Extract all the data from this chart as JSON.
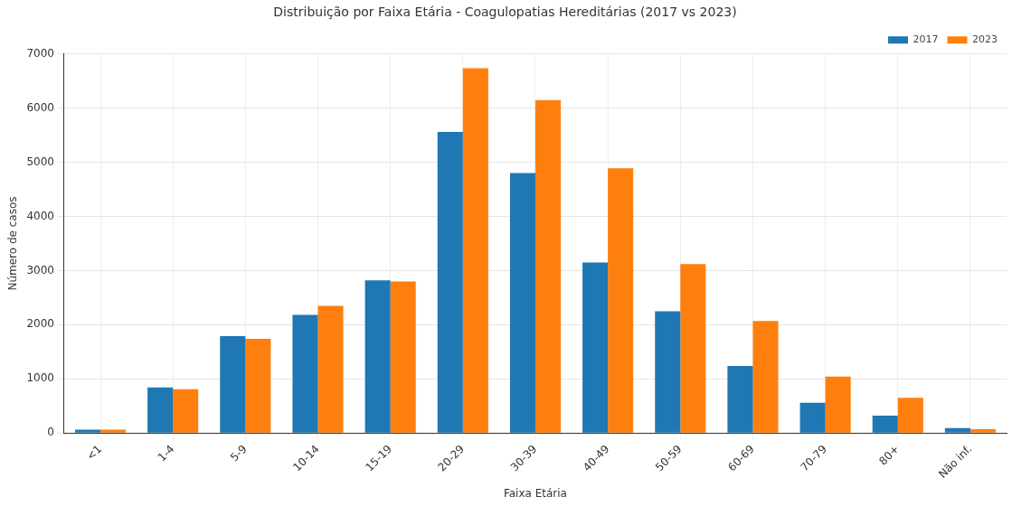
{
  "chart_data": {
    "type": "bar",
    "title": "Distribuição por Faixa Etária - Coagulopatias Hereditárias (2017 vs 2023)",
    "xlabel": "Faixa Etária",
    "ylabel": "Número de casos",
    "categories": [
      "<1",
      "1-4",
      "5-9",
      "10-14",
      "15-19",
      "20-29",
      "30-39",
      "40-49",
      "50-59",
      "60-69",
      "70-79",
      "80+",
      "Não inf."
    ],
    "series": [
      {
        "name": "2017",
        "color": "#1f77b4",
        "values": [
          60,
          840,
          1790,
          2180,
          2820,
          5560,
          4800,
          3150,
          2250,
          1240,
          560,
          320,
          90
        ]
      },
      {
        "name": "2023",
        "color": "#ff7f0e",
        "values": [
          60,
          810,
          1740,
          2350,
          2800,
          6740,
          6150,
          4890,
          3120,
          2070,
          1040,
          650,
          70
        ]
      }
    ],
    "ylim": [
      0,
      7000
    ],
    "yticks": [
      0,
      1000,
      2000,
      3000,
      4000,
      5000,
      6000,
      7000
    ],
    "grid": true,
    "legend": "top right"
  }
}
